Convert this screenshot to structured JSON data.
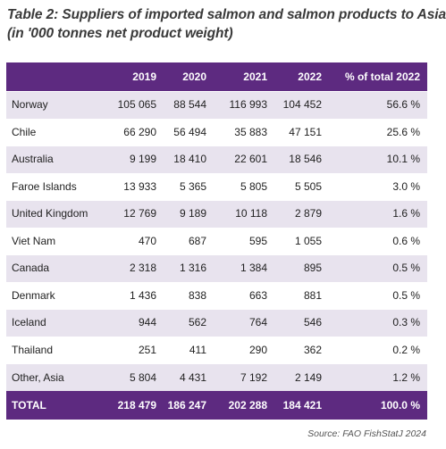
{
  "title": {
    "line1": "Table 2: Suppliers of imported salmon and salmon products to Asia",
    "line2": "(in '000 tonnes net product weight)"
  },
  "table": {
    "headers": [
      "",
      "2019",
      "2020",
      "2021",
      "2022",
      "% of total 2022"
    ],
    "rows": [
      [
        "Norway",
        "105 065",
        "88 544",
        "116 993",
        "104 452",
        "56.6 %"
      ],
      [
        "Chile",
        "66 290",
        "56 494",
        "35 883",
        "47 151",
        "25.6 %"
      ],
      [
        "Australia",
        "9 199",
        "18 410",
        "22 601",
        "18 546",
        "10.1 %"
      ],
      [
        "Faroe Islands",
        "13 933",
        "5 365",
        "5 805",
        "5 505",
        "3.0 %"
      ],
      [
        "United Kingdom",
        "12 769",
        "9 189",
        "10 118",
        "2 879",
        "1.6 %"
      ],
      [
        "Viet Nam",
        "470",
        "687",
        "595",
        "1 055",
        "0.6 %"
      ],
      [
        "Canada",
        "2 318",
        "1 316",
        "1 384",
        "895",
        "0.5 %"
      ],
      [
        "Denmark",
        "1 436",
        "838",
        "663",
        "881",
        "0.5 %"
      ],
      [
        "Iceland",
        "944",
        "562",
        "764",
        "546",
        "0.3 %"
      ],
      [
        "Thailand",
        "251",
        "411",
        "290",
        "362",
        "0.2 %"
      ],
      [
        "Other, Asia",
        "5 804",
        "4 431",
        "7 192",
        "2 149",
        "1.2 %"
      ]
    ],
    "total": [
      "TOTAL",
      "218 479",
      "186 247",
      "202 288",
      "184 421",
      "100.0 %"
    ]
  },
  "source": "Source: FAO FishStatJ 2024",
  "colors": {
    "header_bg": "#5d2a80",
    "stripe_bg": "#e8e3ee",
    "title_text": "#3a3a3a"
  }
}
